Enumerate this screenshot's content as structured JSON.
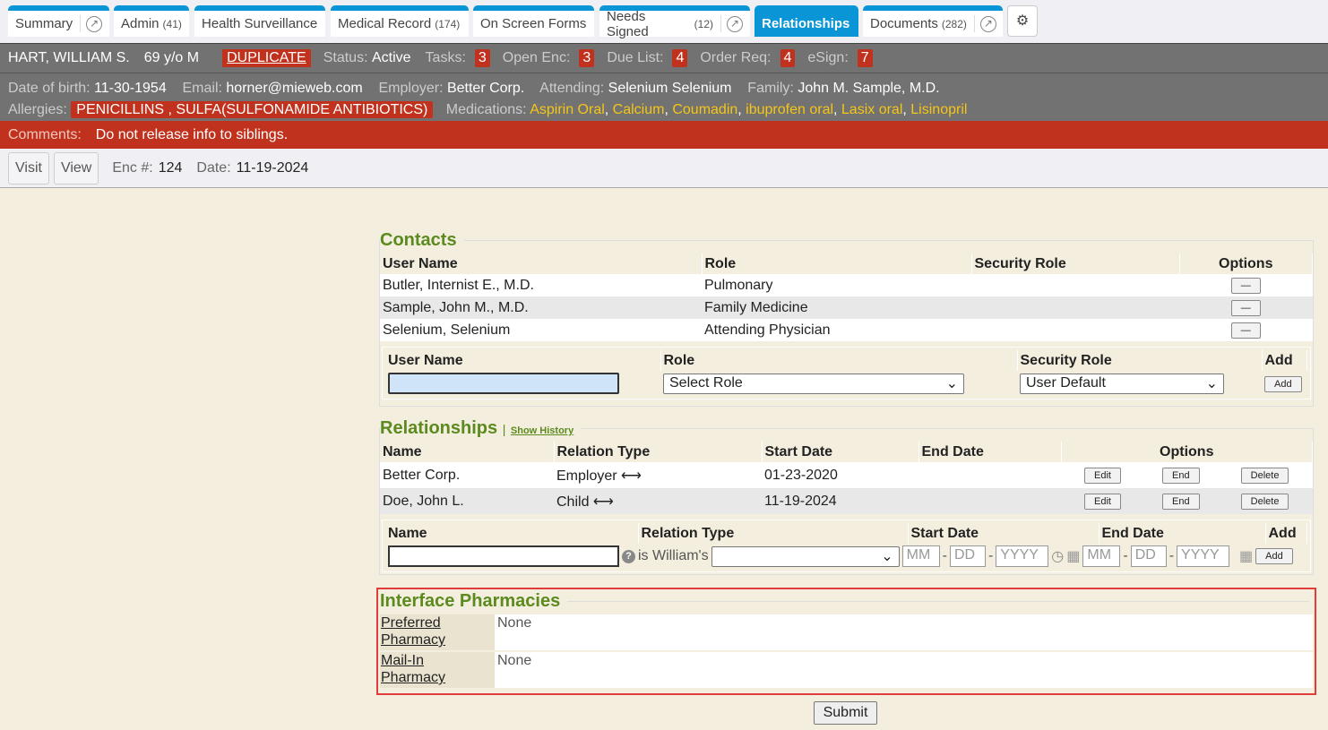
{
  "tabs": [
    {
      "label": "Summary",
      "count": ""
    },
    {
      "label": "Admin",
      "count": "(41)"
    },
    {
      "label": "Health Surveillance",
      "count": ""
    },
    {
      "label": "Medical Record",
      "count": "(174)"
    },
    {
      "label": "On Screen Forms",
      "count": ""
    },
    {
      "label": "Needs Signed",
      "count": "(12)"
    },
    {
      "label": "Relationships",
      "count": ""
    },
    {
      "label": "Documents",
      "count": "(282)"
    }
  ],
  "patient": {
    "name": "HART, WILLIAM S.",
    "age": "69 y/o M",
    "duplicate": "DUPLICATE",
    "status_label": "Status:",
    "status": "Active",
    "tasks_label": "Tasks:",
    "tasks": "3",
    "open_enc_label": "Open Enc:",
    "open_enc": "3",
    "due_label": "Due List:",
    "due": "4",
    "order_label": "Order Req:",
    "order": "4",
    "esign_label": "eSign:",
    "esign": "7",
    "dob_label": "Date of birth:",
    "dob": "11-30-1954",
    "email_label": "Email:",
    "email": "horner@mieweb.com",
    "employer_label": "Employer:",
    "employer": "Better Corp.",
    "attending_label": "Attending:",
    "attending": "Selenium Selenium",
    "family_label": "Family:",
    "family": "John M. Sample, M.D.",
    "allergies_label": "Allergies:",
    "allergies": "PENICILLINS , SULFA(SULFONAMIDE ANTIBIOTICS)",
    "medications_label": "Medications:",
    "medications": [
      "Aspirin Oral",
      "Calcium",
      "Coumadin",
      "ibuprofen oral",
      "Lasix oral",
      "Lisinopril"
    ]
  },
  "comments": {
    "label": "Comments:",
    "text": "Do not release info to siblings."
  },
  "encounter": {
    "visit": "Visit",
    "view": "View",
    "enc_label": "Enc #:",
    "enc": "124",
    "date_label": "Date:",
    "date": "11-19-2024"
  },
  "contacts": {
    "title": "Contacts",
    "headers": [
      "User Name",
      "Role",
      "Security Role",
      "Options"
    ],
    "rows": [
      {
        "name": "Butler, Internist E., M.D.",
        "role": "Pulmonary",
        "security": ""
      },
      {
        "name": "Sample, John M., M.D.",
        "role": "Family Medicine",
        "security": ""
      },
      {
        "name": "Selenium, Selenium",
        "role": "Attending Physician",
        "security": ""
      }
    ],
    "remove_label": "—",
    "add_headers": [
      "User Name",
      "Role",
      "Security Role",
      "Add"
    ],
    "role_select": "Select Role",
    "security_select": "User Default",
    "add": "Add"
  },
  "relationships": {
    "title": "Relationships",
    "show_history": "Show History",
    "headers": [
      "Name",
      "Relation Type",
      "Start Date",
      "End Date",
      "Options"
    ],
    "rows": [
      {
        "name": "Better Corp.",
        "type": "Employer",
        "start": "01-23-2020",
        "end": ""
      },
      {
        "name": "Doe, John L.",
        "type": "Child",
        "start": "11-19-2024",
        "end": ""
      }
    ],
    "edit": "Edit",
    "end": "End",
    "delete": "Delete",
    "add_headers": [
      "Name",
      "Relation Type",
      "Start Date",
      "End Date",
      "Add"
    ],
    "is_label": "is William's",
    "mm": "MM",
    "dd": "DD",
    "yyyy": "YYYY",
    "add": "Add"
  },
  "pharmacies": {
    "title": "Interface Pharmacies",
    "rows": [
      {
        "label1": "Preferred",
        "label2": "Pharmacy",
        "value": "None"
      },
      {
        "label1": "Mail-In",
        "label2": "Pharmacy",
        "value": "None"
      }
    ]
  },
  "submit": "Submit"
}
